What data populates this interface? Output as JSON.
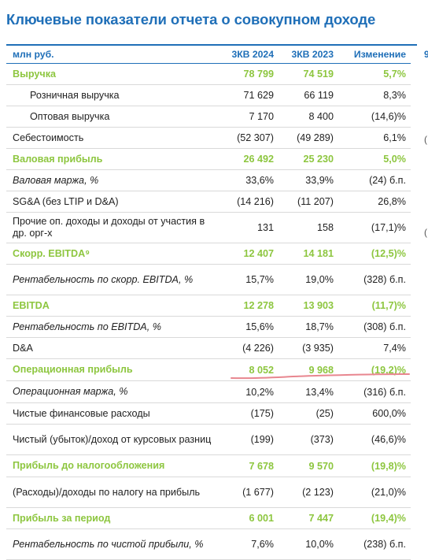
{
  "title": "Ключевые показатели отчета о совокупном доходе",
  "columns": {
    "label": "млн руб.",
    "a": "3КВ 2024",
    "b": "3КВ 2023",
    "c": "Изменение"
  },
  "rows": [
    {
      "label": "Выручка",
      "a": "78 799",
      "b": "74 519",
      "c": "5,7%"
    },
    {
      "label": "Розничная выручка",
      "a": "71 629",
      "b": "66 119",
      "c": "8,3%"
    },
    {
      "label": "Оптовая выручка",
      "a": "7 170",
      "b": "8 400",
      "c": "(14,6)%"
    },
    {
      "label": "Себестоимость",
      "a": "(52 307)",
      "b": "(49 289)",
      "c": "6,1%"
    },
    {
      "label": "Валовая прибыль",
      "a": "26 492",
      "b": "25 230",
      "c": "5,0%"
    },
    {
      "label": "Валовая маржа, %",
      "a": "33,6%",
      "b": "33,9%",
      "c": "(24) б.п."
    },
    {
      "label": "SG&A (без LTIP и D&A)",
      "a": "(14 216)",
      "b": "(11 207)",
      "c": "26,8%"
    },
    {
      "label": "Прочие оп. доходы и доходы от участия в др. орг-х",
      "a": "131",
      "b": "158",
      "c": "(17,1)%"
    },
    {
      "label": "Скорр. EBITDA⁹",
      "a": "12 407",
      "b": "14 181",
      "c": "(12,5)%"
    },
    {
      "label": "Рентабельность по скорр. EBITDA, %",
      "a": "15,7%",
      "b": "19,0%",
      "c": "(328) б.п."
    },
    {
      "label": "EBITDA",
      "a": "12 278",
      "b": "13 903",
      "c": "(11,7)%"
    },
    {
      "label": "Рентабельность по EBITDA, %",
      "a": "15,6%",
      "b": "18,7%",
      "c": "(308) б.п."
    },
    {
      "label": "D&A",
      "a": "(4 226)",
      "b": "(3 935)",
      "c": "7,4%"
    },
    {
      "label": "Операционная прибыль",
      "a": "8 052",
      "b": "9 968",
      "c": "(19,2)%"
    },
    {
      "label": "Операционная маржа, %",
      "a": "10,2%",
      "b": "13,4%",
      "c": "(316) б.п."
    },
    {
      "label": "Чистые финансовые расходы",
      "a": "(175)",
      "b": "(25)",
      "c": "600,0%"
    },
    {
      "label": "Чистый (убыток)/доход от курсовых разниц",
      "a": "(199)",
      "b": "(373)",
      "c": "(46,6)%"
    },
    {
      "label": "Прибыль до налогообложения",
      "a": "7 678",
      "b": "9 570",
      "c": "(19,8)%"
    },
    {
      "label": "(Расходы)/доходы по налогу на прибыль",
      "a": "(1 677)",
      "b": "(2 123)",
      "c": "(21,0)%"
    },
    {
      "label": "Прибыль за период",
      "a": "6 001",
      "b": "7 447",
      "c": "(19,4)%"
    },
    {
      "label": "Рентабельность по чистой прибыли, %",
      "a": "7,6%",
      "b": "10,0%",
      "c": "(238) б.п."
    }
  ],
  "colors": {
    "title_blue": "#1f6fb8",
    "highlight_green": "#8dc63f",
    "annotation_red": "#e8868f"
  },
  "edge_glyphs": [
    "9",
    "(",
    "("
  ]
}
